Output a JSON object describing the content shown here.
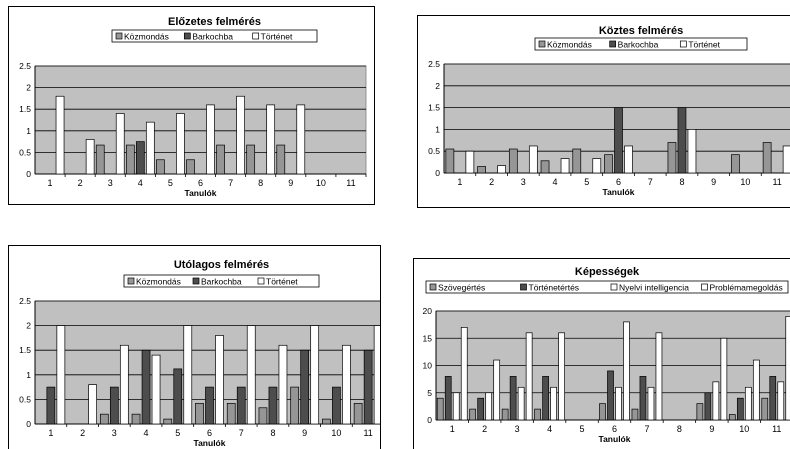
{
  "colors": {
    "plot_background": "#c0c0c0",
    "gridline": "#000000",
    "series_1": "#969696",
    "series_2": "#4d4d4d",
    "series_3": "#ffffff",
    "series_4": "#ffffff"
  },
  "chart_data": [
    {
      "type": "bar",
      "title": "Előzetes felmérés",
      "xlabel": "Tanulók",
      "ylabel": "",
      "categories": [
        "1",
        "2",
        "3",
        "4",
        "5",
        "6",
        "7",
        "8",
        "9",
        "10",
        "11"
      ],
      "ylim": [
        0,
        2.5
      ],
      "yticks": [
        "0",
        "0.5",
        "1",
        "1.5",
        "2",
        "2.5"
      ],
      "grid": true,
      "legend": "top",
      "series": [
        {
          "name": "Közmondás",
          "values": [
            0,
            0,
            0.67,
            0.67,
            0.33,
            0.33,
            0.67,
            0.67,
            0.67,
            0,
            0
          ]
        },
        {
          "name": "Barkochba",
          "values": [
            0,
            0,
            0,
            0.75,
            0,
            0,
            0,
            0,
            0,
            0,
            0
          ]
        },
        {
          "name": "Történet",
          "values": [
            1.8,
            0.8,
            1.4,
            1.2,
            1.4,
            1.6,
            1.8,
            1.6,
            1.6,
            0,
            0
          ]
        }
      ]
    },
    {
      "type": "bar",
      "title": "Köztes felmérés",
      "xlabel": "Tanulók",
      "ylabel": "",
      "categories": [
        "1",
        "2",
        "3",
        "4",
        "5",
        "6",
        "7",
        "8",
        "9",
        "10",
        "11"
      ],
      "ylim": [
        0,
        2.5
      ],
      "yticks": [
        "0",
        "0.5",
        "1",
        "1.5",
        "2",
        "2.5"
      ],
      "grid": true,
      "legend": "top",
      "series": [
        {
          "name": "Közmondás",
          "values": [
            0.55,
            0.15,
            0.55,
            0.28,
            0.55,
            0.42,
            0,
            0.7,
            0,
            0.42,
            0.7
          ]
        },
        {
          "name": "Barkochba",
          "values": [
            0,
            0,
            0,
            0,
            0,
            1.5,
            0,
            1.5,
            0,
            0,
            0
          ]
        },
        {
          "name": "Történet",
          "values": [
            0.5,
            0.17,
            0.62,
            0.33,
            0.33,
            0.62,
            0,
            1.0,
            0,
            0,
            0.62
          ]
        }
      ]
    },
    {
      "type": "bar",
      "title": "Utólagos felmérés",
      "xlabel": "Tanulók",
      "ylabel": "",
      "categories": [
        "1",
        "2",
        "3",
        "4",
        "5",
        "6",
        "7",
        "8",
        "9",
        "10",
        "11"
      ],
      "ylim": [
        0,
        2.5
      ],
      "yticks": [
        "0",
        "0.5",
        "1",
        "1.5",
        "2",
        "2.5"
      ],
      "grid": true,
      "legend": "top",
      "series": [
        {
          "name": "Közmondás",
          "values": [
            0,
            0,
            0.2,
            0.2,
            0.1,
            0.42,
            0.42,
            0.33,
            0.75,
            0.1,
            0.42
          ]
        },
        {
          "name": "Barkochba",
          "values": [
            0.75,
            0,
            0.75,
            1.5,
            1.12,
            0.75,
            0.75,
            0.75,
            1.5,
            0.75,
            1.5
          ]
        },
        {
          "name": "Történet",
          "values": [
            2.0,
            0.8,
            1.6,
            1.4,
            2.0,
            1.8,
            2.0,
            1.6,
            2.0,
            1.6,
            2.0
          ]
        }
      ]
    },
    {
      "type": "bar",
      "title": "Képességek",
      "xlabel": "Tanulók",
      "ylabel": "",
      "categories": [
        "1",
        "2",
        "3",
        "4",
        "5",
        "6",
        "7",
        "8",
        "9",
        "10",
        "11"
      ],
      "ylim": [
        0,
        20
      ],
      "yticks": [
        "0",
        "5",
        "10",
        "15",
        "20"
      ],
      "grid": true,
      "legend": "top",
      "series": [
        {
          "name": "Szövegértés",
          "values": [
            4,
            2,
            2,
            2,
            0,
            3,
            2,
            0,
            3,
            1,
            4
          ]
        },
        {
          "name": "Történetértés",
          "values": [
            8,
            4,
            8,
            8,
            0,
            9,
            8,
            0,
            5,
            4,
            8
          ]
        },
        {
          "name": "Nyelvi intelligencia",
          "values": [
            5,
            5,
            6,
            6,
            0,
            6,
            6,
            0,
            7,
            6,
            7
          ]
        },
        {
          "name": "Problémamegoldás",
          "values": [
            17,
            11,
            16,
            16,
            0,
            18,
            16,
            0,
            15,
            11,
            19
          ]
        }
      ]
    }
  ]
}
